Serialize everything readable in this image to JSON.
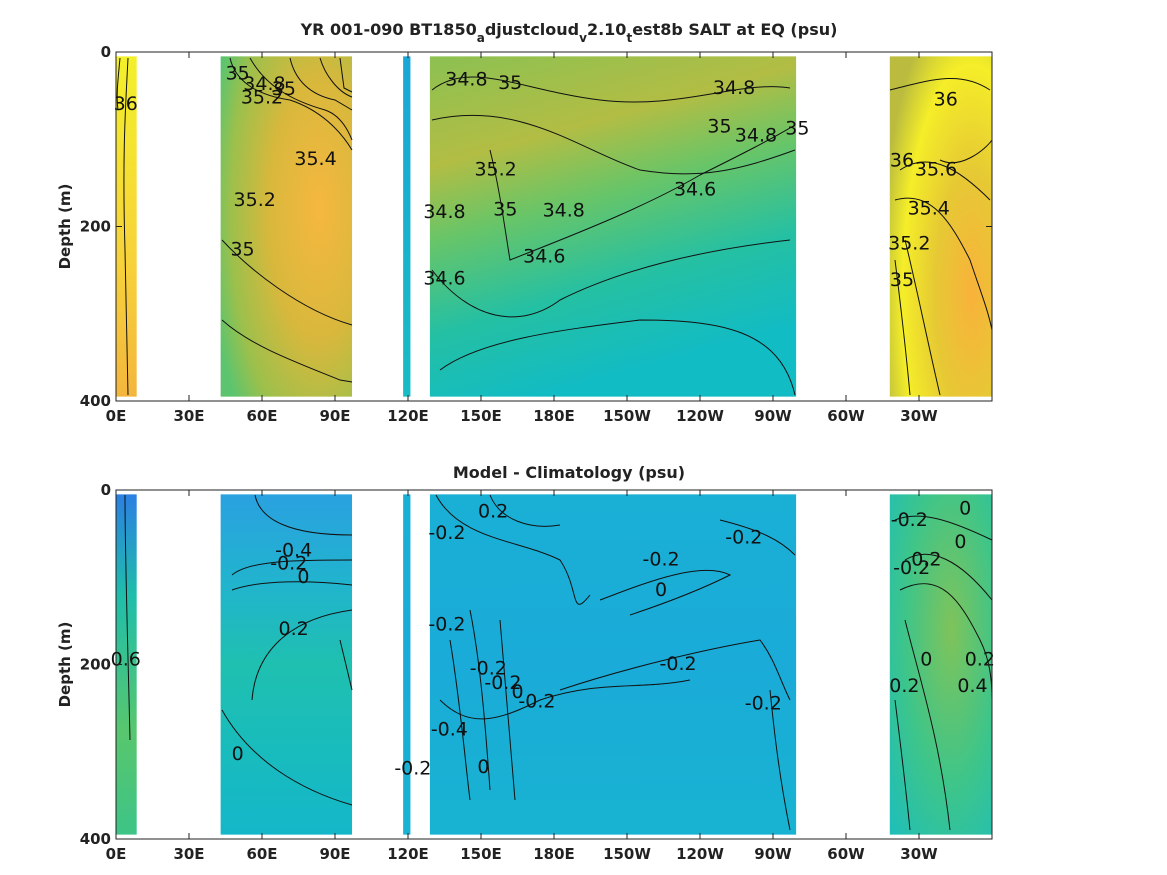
{
  "chart_data": [
    {
      "type": "heatmap",
      "title_parts": [
        {
          "text": "YR 001-090 BT1850",
          "sub": false
        },
        {
          "text": "a",
          "sub": true
        },
        {
          "text": "djustcloud",
          "sub": false
        },
        {
          "text": "v",
          "sub": true
        },
        {
          "text": "2.10",
          "sub": false
        },
        {
          "text": "t",
          "sub": true
        },
        {
          "text": "est8b SALT at EQ (psu)",
          "sub": false
        }
      ],
      "ylabel": "Depth (m)",
      "xlim": [
        0,
        360
      ],
      "ylim": [
        0,
        400
      ],
      "y_reversed": true,
      "x_ticks": [
        {
          "lon": 0,
          "label": "0E"
        },
        {
          "lon": 30,
          "label": "30E"
        },
        {
          "lon": 60,
          "label": "60E"
        },
        {
          "lon": 90,
          "label": "90E"
        },
        {
          "lon": 120,
          "label": "120E"
        },
        {
          "lon": 150,
          "label": "150E"
        },
        {
          "lon": 180,
          "label": "180E"
        },
        {
          "lon": 210,
          "label": "150W"
        },
        {
          "lon": 240,
          "label": "120W"
        },
        {
          "lon": 270,
          "label": "90W"
        },
        {
          "lon": 300,
          "label": "60W"
        },
        {
          "lon": 330,
          "label": "30W"
        }
      ],
      "y_ticks": [
        0,
        200,
        400
      ],
      "colormap": "parula",
      "data_regions": [
        {
          "name": "africa-atlantic-edge",
          "lon": [
            0,
            8.5
          ],
          "depth": [
            5,
            395
          ]
        },
        {
          "name": "indian-ocean",
          "lon": [
            43,
            97
          ],
          "depth": [
            5,
            395
          ]
        },
        {
          "name": "banda-west",
          "lon": [
            118,
            121
          ],
          "depth": [
            5,
            395
          ]
        },
        {
          "name": "pacific",
          "lon": [
            129,
            279.5
          ],
          "depth": [
            5,
            395
          ]
        },
        {
          "name": "atlantic",
          "lon": [
            318,
            360
          ],
          "depth": [
            5,
            395
          ]
        }
      ],
      "contour_labels": [
        {
          "text": "36",
          "lon": 4,
          "depth": 60
        },
        {
          "text": "35",
          "lon": 50,
          "depth": 25
        },
        {
          "text": "34.8",
          "lon": 61,
          "depth": 37
        },
        {
          "text": "35.2",
          "lon": 60,
          "depth": 53
        },
        {
          "text": "35",
          "lon": 69,
          "depth": 43
        },
        {
          "text": "35.4",
          "lon": 82,
          "depth": 123
        },
        {
          "text": "35.2",
          "lon": 57,
          "depth": 170
        },
        {
          "text": "35",
          "lon": 52,
          "depth": 227
        },
        {
          "text": "34.8",
          "lon": 144,
          "depth": 32
        },
        {
          "text": "35",
          "lon": 162,
          "depth": 36
        },
        {
          "text": "35.2",
          "lon": 156,
          "depth": 135
        },
        {
          "text": "35",
          "lon": 160,
          "depth": 181
        },
        {
          "text": "34.8",
          "lon": 135,
          "depth": 184
        },
        {
          "text": "34.8",
          "lon": 184,
          "depth": 182
        },
        {
          "text": "34.6",
          "lon": 176,
          "depth": 235
        },
        {
          "text": "34.6",
          "lon": 135,
          "depth": 260
        },
        {
          "text": "34.8",
          "lon": 254,
          "depth": 42
        },
        {
          "text": "35",
          "lon": 248,
          "depth": 86
        },
        {
          "text": "34.8",
          "lon": 263,
          "depth": 96
        },
        {
          "text": "34.6",
          "lon": 238,
          "depth": 158
        },
        {
          "text": "35",
          "lon": 280,
          "depth": 88
        },
        {
          "text": "36",
          "lon": 341,
          "depth": 55
        },
        {
          "text": "36",
          "lon": 323,
          "depth": 125
        },
        {
          "text": "35.6",
          "lon": 337,
          "depth": 135
        },
        {
          "text": "35.4",
          "lon": 334,
          "depth": 180
        },
        {
          "text": "35.2",
          "lon": 326,
          "depth": 220
        },
        {
          "text": "35",
          "lon": 323,
          "depth": 262
        }
      ]
    },
    {
      "type": "heatmap",
      "title_parts": [
        {
          "text": "Model - Climatology (psu)",
          "sub": false
        }
      ],
      "ylabel": "Depth (m)",
      "xlim": [
        0,
        360
      ],
      "ylim": [
        0,
        400
      ],
      "y_reversed": true,
      "x_ticks": [
        {
          "lon": 0,
          "label": "0E"
        },
        {
          "lon": 30,
          "label": "30E"
        },
        {
          "lon": 60,
          "label": "60E"
        },
        {
          "lon": 90,
          "label": "90E"
        },
        {
          "lon": 120,
          "label": "120E"
        },
        {
          "lon": 150,
          "label": "150E"
        },
        {
          "lon": 180,
          "label": "180E"
        },
        {
          "lon": 210,
          "label": "150W"
        },
        {
          "lon": 240,
          "label": "120W"
        },
        {
          "lon": 270,
          "label": "90W"
        },
        {
          "lon": 300,
          "label": "60W"
        },
        {
          "lon": 330,
          "label": "30W"
        }
      ],
      "y_ticks": [
        0,
        200,
        400
      ],
      "colormap": "parula",
      "data_regions": [
        {
          "name": "africa-atlantic-edge",
          "lon": [
            0,
            8.5
          ],
          "depth": [
            5,
            395
          ]
        },
        {
          "name": "indian-ocean",
          "lon": [
            43,
            97
          ],
          "depth": [
            5,
            395
          ]
        },
        {
          "name": "banda-west",
          "lon": [
            118,
            121
          ],
          "depth": [
            5,
            395
          ]
        },
        {
          "name": "pacific",
          "lon": [
            129,
            279.5
          ],
          "depth": [
            5,
            395
          ]
        },
        {
          "name": "atlantic",
          "lon": [
            318,
            360
          ],
          "depth": [
            5,
            395
          ]
        }
      ],
      "contour_labels": [
        {
          "text": "0.6",
          "lon": 4,
          "depth": 195
        },
        {
          "text": "-0.4",
          "lon": 73,
          "depth": 70
        },
        {
          "text": "-0.2",
          "lon": 71,
          "depth": 85
        },
        {
          "text": "0",
          "lon": 77,
          "depth": 100
        },
        {
          "text": "0.2",
          "lon": 73,
          "depth": 160
        },
        {
          "text": "0",
          "lon": 50,
          "depth": 303
        },
        {
          "text": "0.2",
          "lon": 155,
          "depth": 25
        },
        {
          "text": "-0.2",
          "lon": 136,
          "depth": 50
        },
        {
          "text": "-0.2",
          "lon": 258,
          "depth": 55
        },
        {
          "text": "-0.2",
          "lon": 224,
          "depth": 80
        },
        {
          "text": "0",
          "lon": 224,
          "depth": 115
        },
        {
          "text": "-0.2",
          "lon": 136,
          "depth": 155
        },
        {
          "text": "-0.2",
          "lon": 153,
          "depth": 205
        },
        {
          "text": "-0.2",
          "lon": 159,
          "depth": 222
        },
        {
          "text": "0",
          "lon": 165,
          "depth": 232
        },
        {
          "text": "-0.2",
          "lon": 173,
          "depth": 243
        },
        {
          "text": "-0.2",
          "lon": 231,
          "depth": 200
        },
        {
          "text": "-0.2",
          "lon": 266,
          "depth": 245
        },
        {
          "text": "-0.4",
          "lon": 137,
          "depth": 275
        },
        {
          "text": "-0.2",
          "lon": 122,
          "depth": 320
        },
        {
          "text": "0",
          "lon": 151,
          "depth": 318
        },
        {
          "text": "-0.2",
          "lon": 326,
          "depth": 35
        },
        {
          "text": "0",
          "lon": 349,
          "depth": 22
        },
        {
          "text": "-0.2",
          "lon": 327,
          "depth": 90
        },
        {
          "text": "0.2",
          "lon": 333,
          "depth": 80
        },
        {
          "text": "0",
          "lon": 347,
          "depth": 60
        },
        {
          "text": "0",
          "lon": 333,
          "depth": 195
        },
        {
          "text": "0.2",
          "lon": 355,
          "depth": 195
        },
        {
          "text": "0.4",
          "lon": 352,
          "depth": 225
        },
        {
          "text": "0.2",
          "lon": 324,
          "depth": 225
        }
      ]
    }
  ]
}
